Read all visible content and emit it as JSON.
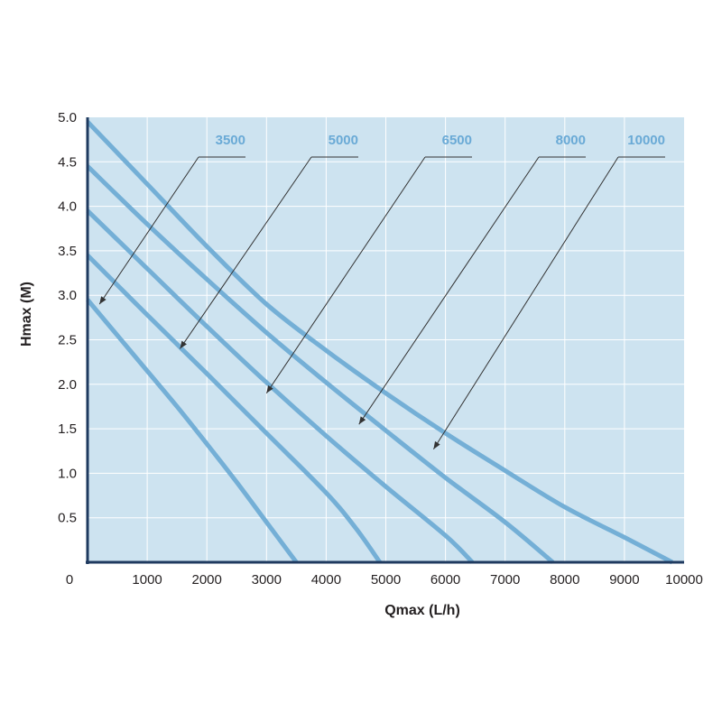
{
  "chart_data": {
    "type": "line",
    "title": "",
    "xlabel": "Qmax (L/h)",
    "ylabel": "Hmax (M)",
    "xlim": [
      0,
      10000
    ],
    "ylim": [
      0,
      5.0
    ],
    "grid": true,
    "x_ticks": [
      0,
      1000,
      2000,
      3000,
      4000,
      5000,
      6000,
      7000,
      8000,
      9000,
      10000
    ],
    "x_tick_labels": [
      "0",
      "1000",
      "2000",
      "3000",
      "4000",
      "5000",
      "6000",
      "7000",
      "8000",
      "9000",
      "10000"
    ],
    "y_ticks": [
      0.5,
      1.0,
      1.5,
      2.0,
      2.5,
      3.0,
      3.5,
      4.0,
      4.5,
      5.0
    ],
    "y_tick_labels": [
      "0.5",
      "1.0",
      "1.5",
      "2.0",
      "2.5",
      "3.0",
      "3.5",
      "4.0",
      "4.5",
      "5.0"
    ],
    "colors": {
      "plot_bg": "#cde3f0",
      "line": "#74afd6",
      "label": "#6aaad6",
      "axis": "#1f3a5f",
      "grid": "#ffffff",
      "arrow": "#333333"
    },
    "series": [
      {
        "name": "3500",
        "x": [
          0,
          500,
          1000,
          1500,
          2000,
          2500,
          3000,
          3500
        ],
        "y": [
          2.95,
          2.55,
          2.15,
          1.75,
          1.33,
          0.9,
          0.45,
          0.0
        ]
      },
      {
        "name": "5000",
        "x": [
          0,
          1000,
          2000,
          3000,
          4000,
          4500,
          4900
        ],
        "y": [
          3.45,
          2.78,
          2.12,
          1.45,
          0.78,
          0.38,
          0.0
        ]
      },
      {
        "name": "6500",
        "x": [
          0,
          1000,
          2000,
          3000,
          4000,
          5000,
          6000,
          6450
        ],
        "y": [
          3.95,
          3.3,
          2.65,
          2.02,
          1.42,
          0.85,
          0.3,
          0.0
        ]
      },
      {
        "name": "8000",
        "x": [
          0,
          1000,
          2000,
          3000,
          4000,
          5000,
          6000,
          7000,
          7800
        ],
        "y": [
          4.45,
          3.8,
          3.18,
          2.58,
          2.02,
          1.48,
          0.95,
          0.45,
          0.0
        ]
      },
      {
        "name": "10000",
        "x": [
          0,
          1000,
          2000,
          3000,
          4000,
          5000,
          6000,
          7000,
          8000,
          9000,
          9800
        ],
        "y": [
          4.95,
          4.25,
          3.55,
          2.9,
          2.38,
          1.9,
          1.45,
          1.03,
          0.62,
          0.28,
          0.0
        ]
      }
    ],
    "annotations": [
      {
        "series": "3500",
        "target": [
          200,
          2.9
        ]
      },
      {
        "series": "5000",
        "target": [
          1550,
          2.4
        ]
      },
      {
        "series": "6500",
        "target": [
          3000,
          1.9
        ]
      },
      {
        "series": "8000",
        "target": [
          4550,
          1.55
        ]
      },
      {
        "series": "10000",
        "target": [
          5800,
          1.27
        ]
      }
    ]
  }
}
